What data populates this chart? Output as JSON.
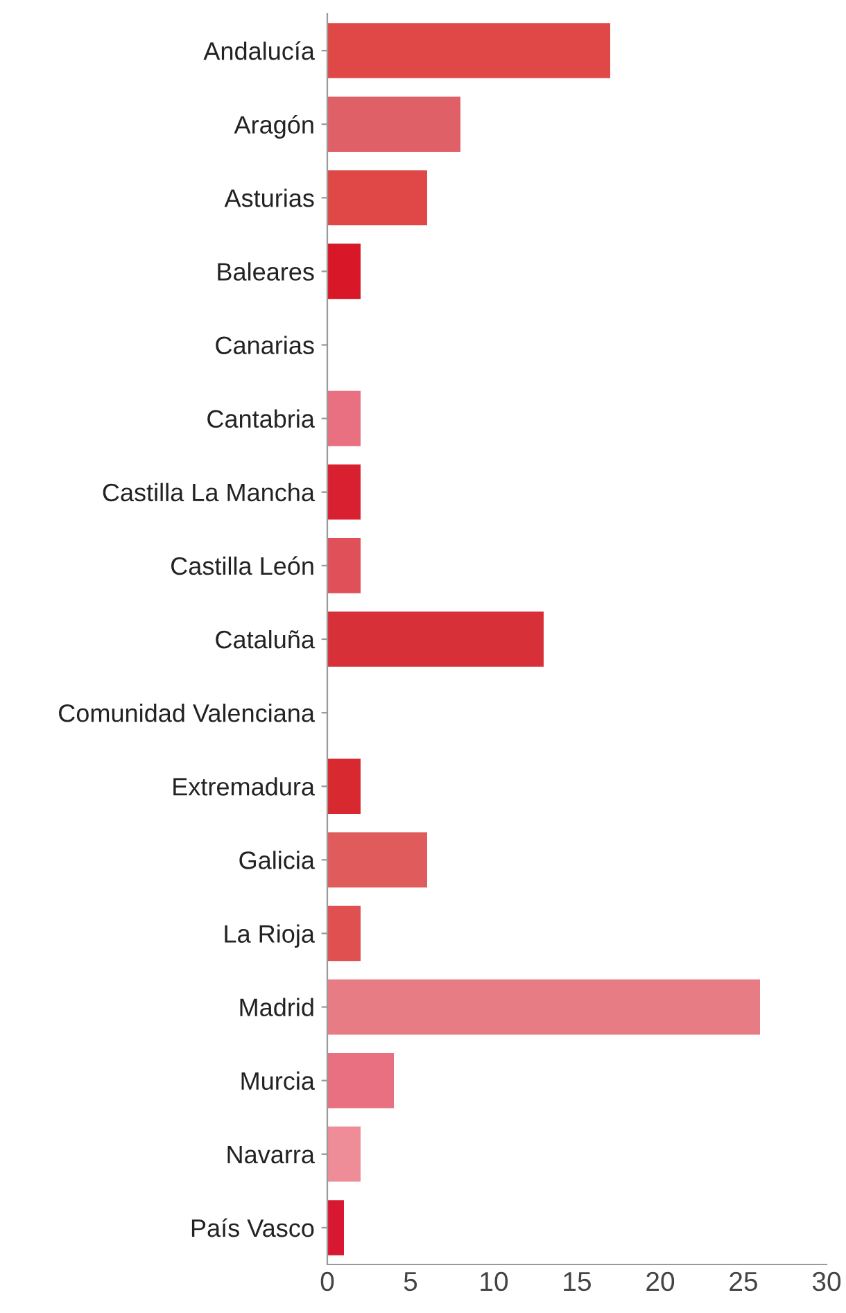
{
  "chart_data": {
    "type": "bar",
    "orientation": "horizontal",
    "categories": [
      "Andalucía",
      "Aragón",
      "Asturias",
      "Baleares",
      "Canarias",
      "Cantabria",
      "Castilla La Mancha",
      "Castilla León",
      "Cataluña",
      "Comunidad Valenciana",
      "Extremadura",
      "Galicia",
      "La Rioja",
      "Madrid",
      "Murcia",
      "Navarra",
      "País Vasco"
    ],
    "values": [
      17,
      8,
      6,
      2,
      0,
      2,
      2,
      2,
      13,
      0,
      2,
      6,
      2,
      26,
      4,
      2,
      1
    ],
    "colors": [
      "#e04848",
      "#e06068",
      "#e04848",
      "#d81828",
      "#e05050",
      "#e87080",
      "#d82030",
      "#e05058",
      "#d83038",
      "#e05050",
      "#d82830",
      "#e05c5c",
      "#e05050",
      "#e87c84",
      "#e87080",
      "#ee8c98",
      "#d81830"
    ],
    "xlim": [
      0,
      30
    ],
    "xticks": [
      0,
      5,
      10,
      15,
      20,
      25,
      30
    ],
    "grid": false
  }
}
